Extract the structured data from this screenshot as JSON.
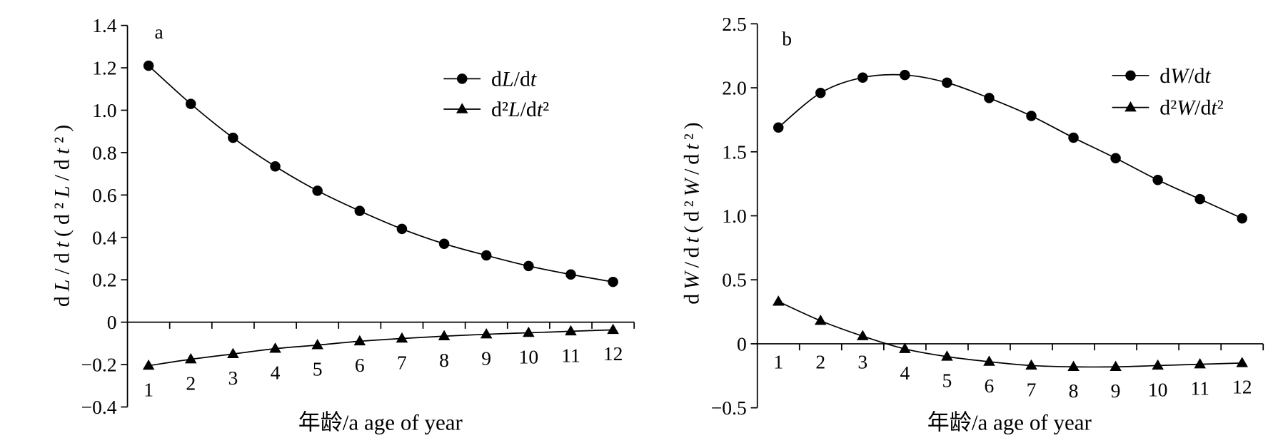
{
  "colors": {
    "ink": "#000000",
    "background": "#ffffff"
  },
  "chart_data": [
    {
      "panel": "a",
      "type": "line",
      "xlabel": "年龄/a age of year",
      "ylabel": "dL/dt(d²L/dt²)",
      "categories": [
        "1",
        "2",
        "3",
        "4",
        "5",
        "6",
        "7",
        "8",
        "9",
        "10",
        "11",
        "12"
      ],
      "ylim": [
        -0.4,
        1.4
      ],
      "yticks": [
        1.4,
        1.2,
        1.0,
        0.8,
        0.6,
        0.4,
        0.2,
        0,
        -0.2,
        -0.4
      ],
      "ytick_labels": [
        "1.4",
        "1.2",
        "1.0",
        "0.8",
        "0.6",
        "0.4",
        "0.2",
        "0",
        "−0.2",
        "−0.4"
      ],
      "grid": false,
      "legend_position": "top-right",
      "series": [
        {
          "name": "dL/dt",
          "marker": "circle",
          "values": [
            1.21,
            1.03,
            0.87,
            0.735,
            0.62,
            0.525,
            0.44,
            0.37,
            0.315,
            0.265,
            0.225,
            0.19
          ]
        },
        {
          "name": "d²L/dt²",
          "marker": "triangle",
          "values": [
            -0.205,
            -0.175,
            -0.15,
            -0.125,
            -0.108,
            -0.09,
            -0.077,
            -0.066,
            -0.057,
            -0.05,
            -0.043,
            -0.036
          ]
        }
      ]
    },
    {
      "panel": "b",
      "type": "line",
      "xlabel": "年龄/a age of year",
      "ylabel": "dW/dt(d²W/dt²)",
      "categories": [
        "1",
        "2",
        "3",
        "4",
        "5",
        "6",
        "7",
        "8",
        "9",
        "10",
        "11",
        "12"
      ],
      "ylim": [
        -0.5,
        2.5
      ],
      "yticks": [
        2.5,
        2.0,
        1.5,
        1.0,
        0.5,
        0,
        -0.5
      ],
      "ytick_labels": [
        "2.5",
        "2.0",
        "1.5",
        "1.0",
        "0.5",
        "0",
        "−0.5"
      ],
      "grid": false,
      "legend_position": "top-right",
      "series": [
        {
          "name": "dW/dt",
          "marker": "circle",
          "values": [
            1.69,
            1.96,
            2.08,
            2.1,
            2.04,
            1.92,
            1.78,
            1.61,
            1.45,
            1.28,
            1.13,
            0.98
          ]
        },
        {
          "name": "d²W/dt²",
          "marker": "triangle",
          "values": [
            0.33,
            0.18,
            0.06,
            -0.04,
            -0.1,
            -0.14,
            -0.17,
            -0.18,
            -0.18,
            -0.17,
            -0.16,
            -0.15
          ]
        }
      ]
    }
  ]
}
